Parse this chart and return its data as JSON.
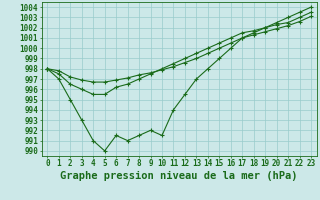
{
  "title": "Graphe pression niveau de la mer (hPa)",
  "x_ticks": [
    0,
    1,
    2,
    3,
    4,
    5,
    6,
    7,
    8,
    9,
    10,
    11,
    12,
    13,
    14,
    15,
    16,
    17,
    18,
    19,
    20,
    21,
    22,
    23
  ],
  "ylim": [
    989.5,
    1004.5
  ],
  "xlim": [
    -0.5,
    23.5
  ],
  "yticks": [
    990,
    991,
    992,
    993,
    994,
    995,
    996,
    997,
    998,
    999,
    1000,
    1001,
    1002,
    1003,
    1004
  ],
  "line1": [
    998,
    997,
    995,
    993,
    991,
    990,
    991.5,
    991,
    991.5,
    992,
    991.5,
    994,
    995.5,
    997,
    998,
    999,
    1000,
    1001,
    1001.5,
    1002,
    1002.5,
    1003,
    1003.5,
    1004
  ],
  "line2": [
    998,
    997.5,
    996.5,
    996,
    995.5,
    995.5,
    996.2,
    996.5,
    997,
    997.5,
    998,
    998.5,
    999,
    999.5,
    1000,
    1000.5,
    1001,
    1001.5,
    1001.7,
    1002,
    1002.3,
    1002.5,
    1003,
    1003.5
  ],
  "line3": [
    998,
    997.8,
    997.2,
    996.9,
    996.7,
    996.7,
    996.9,
    997.1,
    997.4,
    997.6,
    997.9,
    998.2,
    998.6,
    999.0,
    999.5,
    1000,
    1000.5,
    1001,
    1001.3,
    1001.6,
    1001.9,
    1002.2,
    1002.6,
    1003.1
  ],
  "line_color": "#1a6b1a",
  "bg_color": "#cce8e8",
  "grid_color": "#99cccc",
  "title_fontsize": 7.5,
  "tick_fontsize": 5.5
}
